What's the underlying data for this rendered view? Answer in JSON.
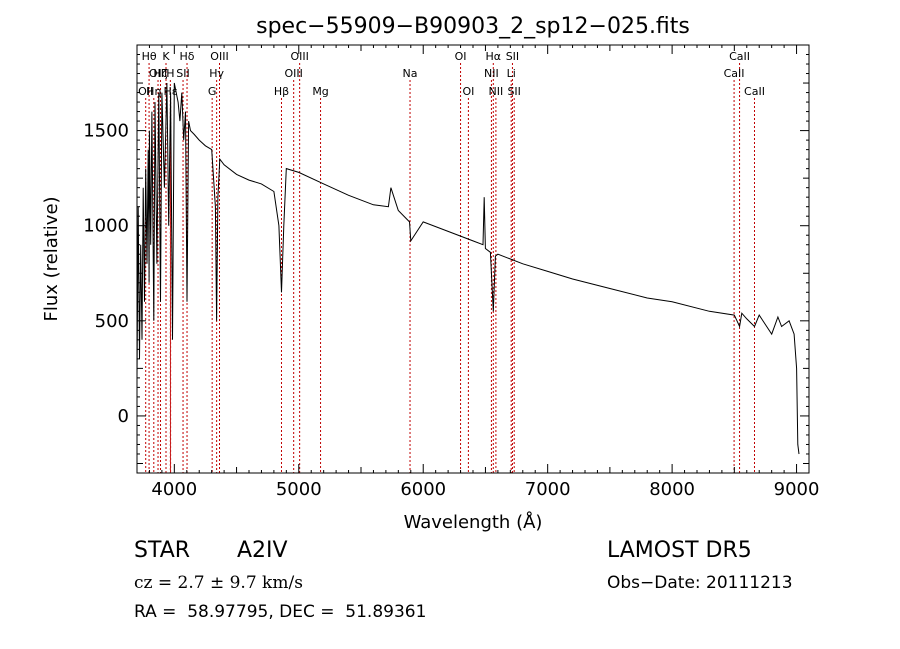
{
  "chart_data": {
    "type": "line",
    "title": "spec−55909−B90903_2_sp12−025.fits",
    "xlabel": "Wavelength (Å)",
    "ylabel": "Flux (relative)",
    "xlim": [
      3700,
      9100
    ],
    "ylim": [
      -300,
      1950
    ],
    "x_ticks": [
      4000,
      5000,
      6000,
      7000,
      8000,
      9000
    ],
    "y_ticks": [
      0,
      500,
      1000,
      1500
    ],
    "grid": false,
    "series": [
      {
        "x": [
          3700,
          3710,
          3720,
          3730,
          3740,
          3750,
          3760,
          3770,
          3780,
          3790,
          3797,
          3800,
          3810,
          3820,
          3835,
          3845,
          3860,
          3875,
          3889,
          3900,
          3920,
          3940,
          3955,
          3970,
          3985,
          4000,
          4015,
          4030,
          4045,
          4060,
          4075,
          4090,
          4102,
          4115,
          4130,
          4160,
          4200,
          4250,
          4300,
          4330,
          4340,
          4350,
          4365,
          4400,
          4500,
          4600,
          4700,
          4800,
          4840,
          4861,
          4880,
          4900,
          5000,
          5200,
          5400,
          5600,
          5720,
          5740,
          5800,
          5890,
          5900,
          6000,
          6200,
          6400,
          6480,
          6490,
          6500,
          6540,
          6563,
          6580,
          6600,
          6800,
          7000,
          7200,
          7500,
          7800,
          8000,
          8300,
          8500,
          8542,
          8560,
          8600,
          8662,
          8700,
          8800,
          8850,
          8880,
          8940,
          8980,
          9000,
          9010,
          9020
        ],
        "y": [
          200,
          1100,
          300,
          900,
          400,
          1200,
          600,
          1300,
          800,
          1400,
          700,
          1500,
          900,
          1600,
          500,
          1650,
          800,
          1700,
          600,
          1700,
          1200,
          1750,
          1000,
          1700,
          400,
          1750,
          1700,
          1650,
          1550,
          1700,
          1450,
          1600,
          600,
          1550,
          1500,
          1480,
          1450,
          1420,
          1400,
          1100,
          500,
          1150,
          1350,
          1320,
          1270,
          1240,
          1220,
          1180,
          1000,
          650,
          1000,
          1300,
          1280,
          1220,
          1160,
          1110,
          1100,
          1200,
          1080,
          1020,
          920,
          1020,
          970,
          920,
          900,
          1150,
          880,
          860,
          550,
          840,
          850,
          800,
          760,
          720,
          670,
          620,
          600,
          550,
          530,
          470,
          540,
          510,
          470,
          530,
          430,
          520,
          470,
          500,
          430,
          250,
          -150,
          -200
        ]
      }
    ],
    "line_labels": [
      {
        "wl": 3770,
        "name": "OII",
        "row": 2
      },
      {
        "wl": 3797,
        "name": "Hθ",
        "row": 0
      },
      {
        "wl": 3835,
        "name": "Hη",
        "row": 2
      },
      {
        "wl": 3869,
        "name": "OIII",
        "row": 1
      },
      {
        "wl": 3889,
        "name": "Hζ",
        "row": 1
      },
      {
        "wl": 3933,
        "name": "K",
        "row": 0
      },
      {
        "wl": 3968,
        "name": "H",
        "row": 1
      },
      {
        "wl": 3970,
        "name": "Hε",
        "row": 2
      },
      {
        "wl": 4070,
        "name": "SII",
        "row": 1
      },
      {
        "wl": 4102,
        "name": "Hδ",
        "row": 0
      },
      {
        "wl": 4304,
        "name": "G",
        "row": 2
      },
      {
        "wl": 4340,
        "name": "Hγ",
        "row": 1
      },
      {
        "wl": 4363,
        "name": "OIII",
        "row": 0
      },
      {
        "wl": 4861,
        "name": "Hβ",
        "row": 2
      },
      {
        "wl": 4959,
        "name": "OIII",
        "row": 1
      },
      {
        "wl": 5007,
        "name": "OIII",
        "row": 0
      },
      {
        "wl": 5175,
        "name": "Mg",
        "row": 2
      },
      {
        "wl": 5894,
        "name": "Na",
        "row": 1
      },
      {
        "wl": 6300,
        "name": "OI",
        "row": 0
      },
      {
        "wl": 6363,
        "name": "OI",
        "row": 2
      },
      {
        "wl": 6548,
        "name": "NII",
        "row": 1
      },
      {
        "wl": 6563,
        "name": "Hα",
        "row": 0
      },
      {
        "wl": 6584,
        "name": "NII",
        "row": 2
      },
      {
        "wl": 6707,
        "name": "Li",
        "row": 1
      },
      {
        "wl": 6717,
        "name": "SII",
        "row": 0
      },
      {
        "wl": 6731,
        "name": "SII",
        "row": 2
      },
      {
        "wl": 8498,
        "name": "CaII",
        "row": 1
      },
      {
        "wl": 8542,
        "name": "CaII",
        "row": 0
      },
      {
        "wl": 8662,
        "name": "CaII",
        "row": 2
      }
    ],
    "line_marker_color": "#c00000",
    "spectrum_color": "#000000"
  },
  "info": {
    "class_label": "STAR",
    "subclass": "A2IV",
    "redshift_text": "cz = 2.7 ± 9.7 km/s",
    "coords_text": "RA =  58.97795, DEC =  51.89361",
    "survey": "LAMOST DR5",
    "obs_date_text": "Obs−Date: 20111213"
  }
}
